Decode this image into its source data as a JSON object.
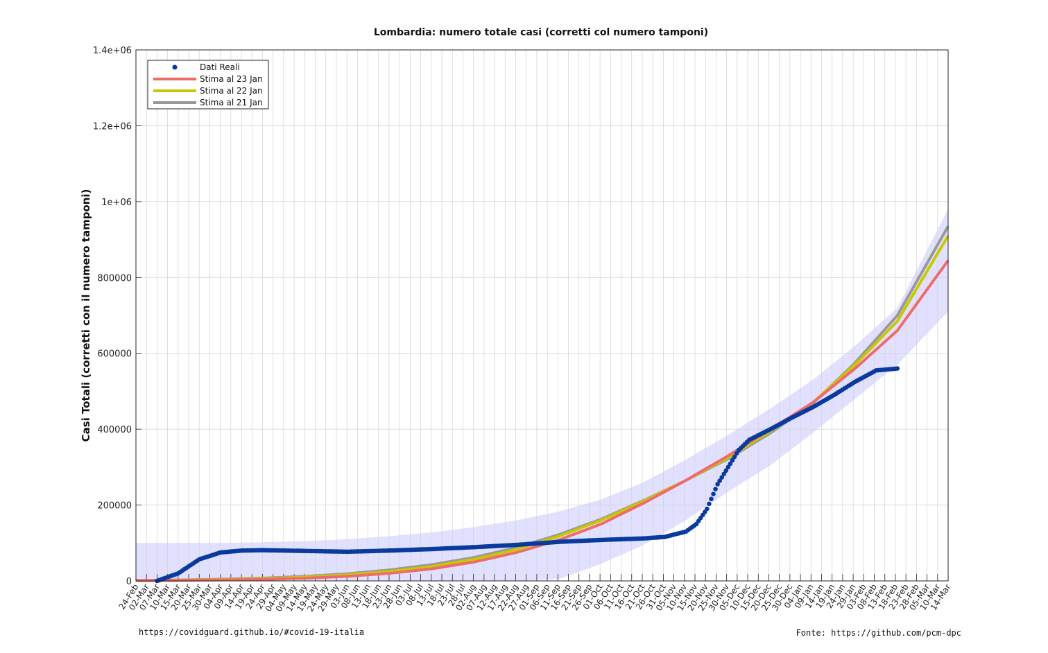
{
  "chart_data": {
    "type": "line",
    "title": "Lombardia: numero totale casi (corretti col numero tamponi)",
    "ylabel": "Casi Totali (corretti con il numero tamponi)",
    "xlabel": "",
    "ylim": [
      0,
      1400000
    ],
    "yticks": [
      0,
      200000,
      400000,
      600000,
      800000,
      1000000,
      1200000,
      1400000
    ],
    "ytick_labels": [
      "0",
      "200000",
      "400000",
      "600000",
      "800000",
      "1e+06",
      "1.2e+06",
      "1.4e+06"
    ],
    "x_day_range": [
      0,
      384
    ],
    "xtick_labels": [
      "24-Feb",
      "02-Mar",
      "07-Mar",
      "10-Mar",
      "15-Mar",
      "20-Mar",
      "25-Mar",
      "30-Mar",
      "04-Apr",
      "09-Apr",
      "14-Apr",
      "19-Apr",
      "24-Apr",
      "29-Apr",
      "04-May",
      "09-May",
      "14-May",
      "19-May",
      "24-May",
      "29-May",
      "03-Jun",
      "08-Jun",
      "13-Jun",
      "18-Jun",
      "23-Jun",
      "28-Jun",
      "03-Jul",
      "08-Jul",
      "13-Jul",
      "18-Jul",
      "23-Jul",
      "28-Jul",
      "02-Aug",
      "07-Aug",
      "12-Aug",
      "17-Aug",
      "22-Aug",
      "27-Aug",
      "01-Sep",
      "06-Sep",
      "11-Sep",
      "16-Sep",
      "21-Sep",
      "26-Sep",
      "01-Oct",
      "06-Oct",
      "11-Oct",
      "16-Oct",
      "21-Oct",
      "26-Oct",
      "31-Oct",
      "05-Nov",
      "10-Nov",
      "15-Nov",
      "20-Nov",
      "25-Nov",
      "30-Nov",
      "05-Dec",
      "10-Dec",
      "15-Dec",
      "20-Dec",
      "25-Dec",
      "30-Dec",
      "04-Jan",
      "09-Jan",
      "14-Jan",
      "19-Jan",
      "24-Jan",
      "29-Jan",
      "03-Feb",
      "08-Feb",
      "13-Feb",
      "18-Feb",
      "23-Feb",
      "28-Feb",
      "05-Mar",
      "10-Mar",
      "14-Mar"
    ],
    "grid": true,
    "legend_position": "top-left",
    "series": [
      {
        "name": "Dati Reali",
        "color": "#0a3a9e",
        "style": "points",
        "x": [
          10,
          20,
          30,
          40,
          50,
          60,
          70,
          80,
          100,
          120,
          140,
          160,
          180,
          200,
          220,
          240,
          250,
          260,
          265,
          270,
          275,
          280,
          285,
          290,
          300,
          310,
          320,
          330,
          340,
          350,
          360,
          335
        ],
        "y": [
          0,
          20000,
          57000,
          75000,
          80000,
          81000,
          80000,
          79000,
          77000,
          80000,
          84000,
          89000,
          95000,
          103000,
          108000,
          112000,
          116000,
          130000,
          150000,
          190000,
          255000,
          300000,
          345000,
          372000,
          400000,
          430000,
          458000,
          490000,
          525000,
          555000,
          560000,
          510000
        ]
      },
      {
        "name": "Stima al 23 Jan",
        "color": "#f06a6a",
        "style": "line",
        "x": [
          0,
          20,
          40,
          60,
          80,
          100,
          120,
          140,
          160,
          180,
          200,
          220,
          240,
          260,
          280,
          300,
          320,
          340,
          360,
          384
        ],
        "y": [
          1000,
          1500,
          2500,
          4000,
          7000,
          12000,
          20000,
          32000,
          50000,
          75000,
          108000,
          150000,
          205000,
          265000,
          330000,
          400000,
          470000,
          560000,
          660000,
          845000
        ]
      },
      {
        "name": "Stima al 22 Jan",
        "color": "#c8c800",
        "style": "line",
        "x": [
          0,
          20,
          40,
          60,
          80,
          100,
          120,
          140,
          160,
          180,
          200,
          220,
          240,
          260,
          280,
          300,
          320,
          340,
          360,
          384
        ],
        "y": [
          1000,
          2000,
          3500,
          6000,
          10000,
          16000,
          25000,
          38000,
          57000,
          83000,
          118000,
          160000,
          210000,
          265000,
          325000,
          395000,
          470000,
          570000,
          685000,
          910000
        ]
      },
      {
        "name": "Stima al 21 Jan",
        "color": "#999999",
        "style": "line",
        "x": [
          0,
          20,
          40,
          60,
          80,
          100,
          120,
          140,
          160,
          180,
          200,
          220,
          240,
          260,
          280,
          300,
          320,
          340,
          360,
          384
        ],
        "y": [
          1200,
          2500,
          4500,
          7500,
          12000,
          19000,
          29000,
          43000,
          62000,
          88000,
          122000,
          163000,
          212000,
          265000,
          322000,
          390000,
          468000,
          575000,
          700000,
          935000
        ]
      }
    ],
    "band": {
      "color": "#c8c8ff",
      "x": [
        0,
        20,
        40,
        60,
        80,
        100,
        120,
        140,
        160,
        180,
        200,
        220,
        240,
        260,
        280,
        300,
        320,
        340,
        360,
        384
      ],
      "upper": [
        100000,
        100000,
        100000,
        102000,
        105000,
        110000,
        118000,
        128000,
        142000,
        160000,
        183000,
        215000,
        260000,
        320000,
        385000,
        455000,
        530000,
        620000,
        720000,
        980000
      ],
      "lower": [
        0,
        0,
        0,
        0,
        0,
        0,
        0,
        0,
        0,
        0,
        5000,
        45000,
        95000,
        160000,
        235000,
        305000,
        390000,
        480000,
        570000,
        710000
      ]
    }
  },
  "footer": {
    "left": "https://covidguard.github.io/#covid-19-italia",
    "right": "Fonte: https://github.com/pcm-dpc"
  }
}
